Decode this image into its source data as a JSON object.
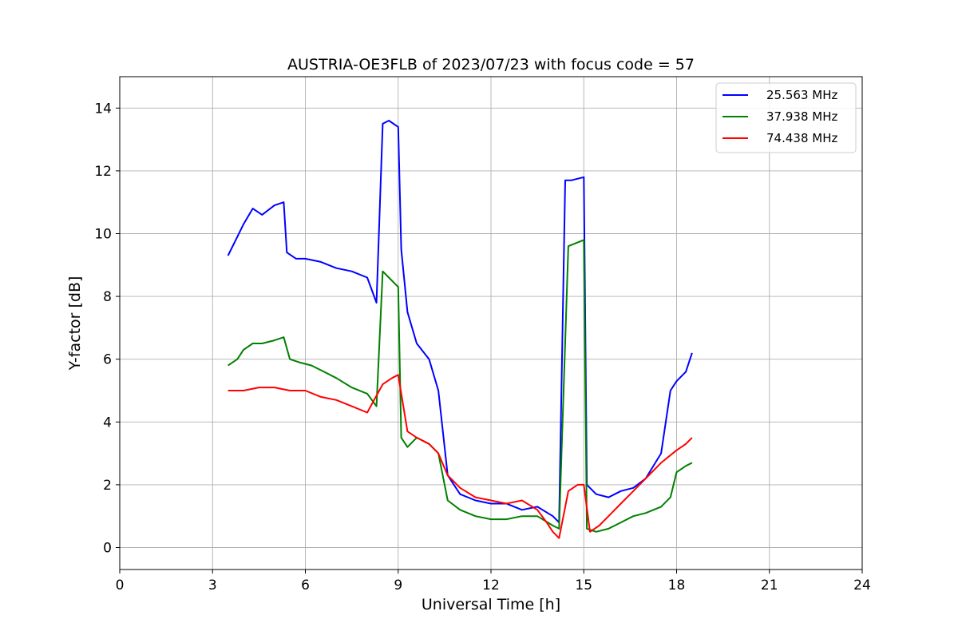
{
  "chart_data": {
    "type": "line",
    "title": "AUSTRIA-OE3FLB of 2023/07/23 with focus code = 57",
    "xlabel": "Universal Time [h]",
    "ylabel": "Y-factor [dB]",
    "xlim": [
      0,
      24
    ],
    "ylim": [
      -0.7,
      15
    ],
    "xticks": [
      0,
      3,
      6,
      9,
      12,
      15,
      18,
      21,
      24
    ],
    "yticks": [
      0,
      2,
      4,
      6,
      8,
      10,
      12,
      14
    ],
    "grid": true,
    "legend_position": "top-right",
    "series": [
      {
        "name": "25.563 MHz",
        "color": "#0000ff",
        "x": [
          3.5,
          3.8,
          4.0,
          4.3,
          4.6,
          5.0,
          5.3,
          5.4,
          5.7,
          6.0,
          6.5,
          7.0,
          7.5,
          8.0,
          8.3,
          8.5,
          8.7,
          9.0,
          9.1,
          9.3,
          9.6,
          10.0,
          10.3,
          10.6,
          11.0,
          11.5,
          12.0,
          12.5,
          13.0,
          13.5,
          14.0,
          14.2,
          14.4,
          14.6,
          15.0,
          15.1,
          15.4,
          15.8,
          16.2,
          16.6,
          17.0,
          17.5,
          17.8,
          18.0,
          18.3,
          18.5
        ],
        "y": [
          9.3,
          9.9,
          10.3,
          10.8,
          10.6,
          10.9,
          11.0,
          9.4,
          9.2,
          9.2,
          9.1,
          8.9,
          8.8,
          8.6,
          7.8,
          13.5,
          13.6,
          13.4,
          9.5,
          7.5,
          6.5,
          6.0,
          5.0,
          2.3,
          1.7,
          1.5,
          1.4,
          1.4,
          1.2,
          1.3,
          1.0,
          0.8,
          11.7,
          11.7,
          11.8,
          2.0,
          1.7,
          1.6,
          1.8,
          1.9,
          2.2,
          3.0,
          5.0,
          5.3,
          5.6,
          6.2
        ]
      },
      {
        "name": "37.938 MHz",
        "color": "#008000",
        "x": [
          3.5,
          3.8,
          4.0,
          4.3,
          4.6,
          5.0,
          5.3,
          5.5,
          5.8,
          6.2,
          6.6,
          7.0,
          7.5,
          8.0,
          8.3,
          8.5,
          8.7,
          9.0,
          9.1,
          9.3,
          9.6,
          10.0,
          10.3,
          10.6,
          11.0,
          11.5,
          12.0,
          12.5,
          13.0,
          13.5,
          14.0,
          14.2,
          14.5,
          15.0,
          15.1,
          15.4,
          15.8,
          16.2,
          16.6,
          17.0,
          17.5,
          17.8,
          18.0,
          18.3,
          18.5
        ],
        "y": [
          5.8,
          6.0,
          6.3,
          6.5,
          6.5,
          6.6,
          6.7,
          6.0,
          5.9,
          5.8,
          5.6,
          5.4,
          5.1,
          4.9,
          4.5,
          8.8,
          8.6,
          8.3,
          3.5,
          3.2,
          3.5,
          3.3,
          3.0,
          1.5,
          1.2,
          1.0,
          0.9,
          0.9,
          1.0,
          1.0,
          0.7,
          0.6,
          9.6,
          9.8,
          0.6,
          0.5,
          0.6,
          0.8,
          1.0,
          1.1,
          1.3,
          1.6,
          2.4,
          2.6,
          2.7
        ]
      },
      {
        "name": "74.438 MHz",
        "color": "#ff0000",
        "x": [
          3.5,
          4.0,
          4.5,
          5.0,
          5.5,
          6.0,
          6.5,
          7.0,
          7.5,
          8.0,
          8.5,
          8.8,
          9.0,
          9.3,
          9.6,
          10.0,
          10.3,
          10.6,
          11.0,
          11.5,
          12.0,
          12.5,
          13.0,
          13.5,
          13.8,
          14.0,
          14.2,
          14.5,
          14.8,
          15.0,
          15.2,
          15.5,
          15.8,
          16.2,
          16.6,
          17.0,
          17.5,
          18.0,
          18.3,
          18.5
        ],
        "y": [
          5.0,
          5.0,
          5.1,
          5.1,
          5.0,
          5.0,
          4.8,
          4.7,
          4.5,
          4.3,
          5.2,
          5.4,
          5.5,
          3.7,
          3.5,
          3.3,
          3.0,
          2.3,
          1.9,
          1.6,
          1.5,
          1.4,
          1.5,
          1.2,
          0.8,
          0.5,
          0.3,
          1.8,
          2.0,
          2.0,
          0.5,
          0.7,
          1.0,
          1.4,
          1.8,
          2.2,
          2.7,
          3.1,
          3.3,
          3.5
        ]
      }
    ]
  }
}
